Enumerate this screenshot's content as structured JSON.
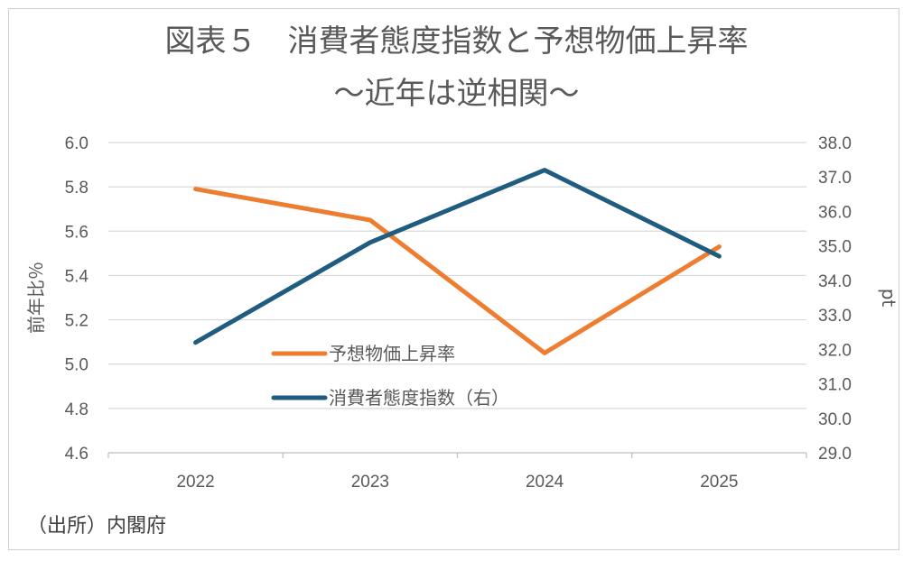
{
  "chart_data": {
    "type": "line",
    "title": "図表５　消費者態度指数と予想物価上昇率",
    "subtitle": "～近年は逆相関～",
    "categories": [
      "2022",
      "2023",
      "2024",
      "2025"
    ],
    "series": [
      {
        "name": "予想物価上昇率",
        "axis": "left",
        "color": "#ED7D31",
        "values": [
          5.79,
          5.65,
          5.05,
          5.53
        ]
      },
      {
        "name": "消費者態度指数（右）",
        "axis": "right",
        "color": "#1F5C7F",
        "values": [
          32.2,
          35.1,
          37.2,
          34.7
        ]
      }
    ],
    "left_axis": {
      "label": "前年比％",
      "min": 4.6,
      "max": 6.0,
      "ticks": [
        "6.0",
        "5.8",
        "5.6",
        "5.4",
        "5.2",
        "5.0",
        "4.8",
        "4.6"
      ],
      "tick_values": [
        6.0,
        5.8,
        5.6,
        5.4,
        5.2,
        5.0,
        4.8,
        4.6
      ]
    },
    "right_axis": {
      "label": "pt",
      "min": 29.0,
      "max": 38.0,
      "ticks": [
        "38.0",
        "37.0",
        "36.0",
        "35.0",
        "34.0",
        "33.0",
        "32.0",
        "31.0",
        "30.0",
        "29.0"
      ],
      "tick_values": [
        38,
        37,
        36,
        35,
        34,
        33,
        32,
        31,
        30,
        29
      ]
    },
    "grid": true,
    "legend_position": "center-left"
  },
  "source": "（出所）内閣府"
}
